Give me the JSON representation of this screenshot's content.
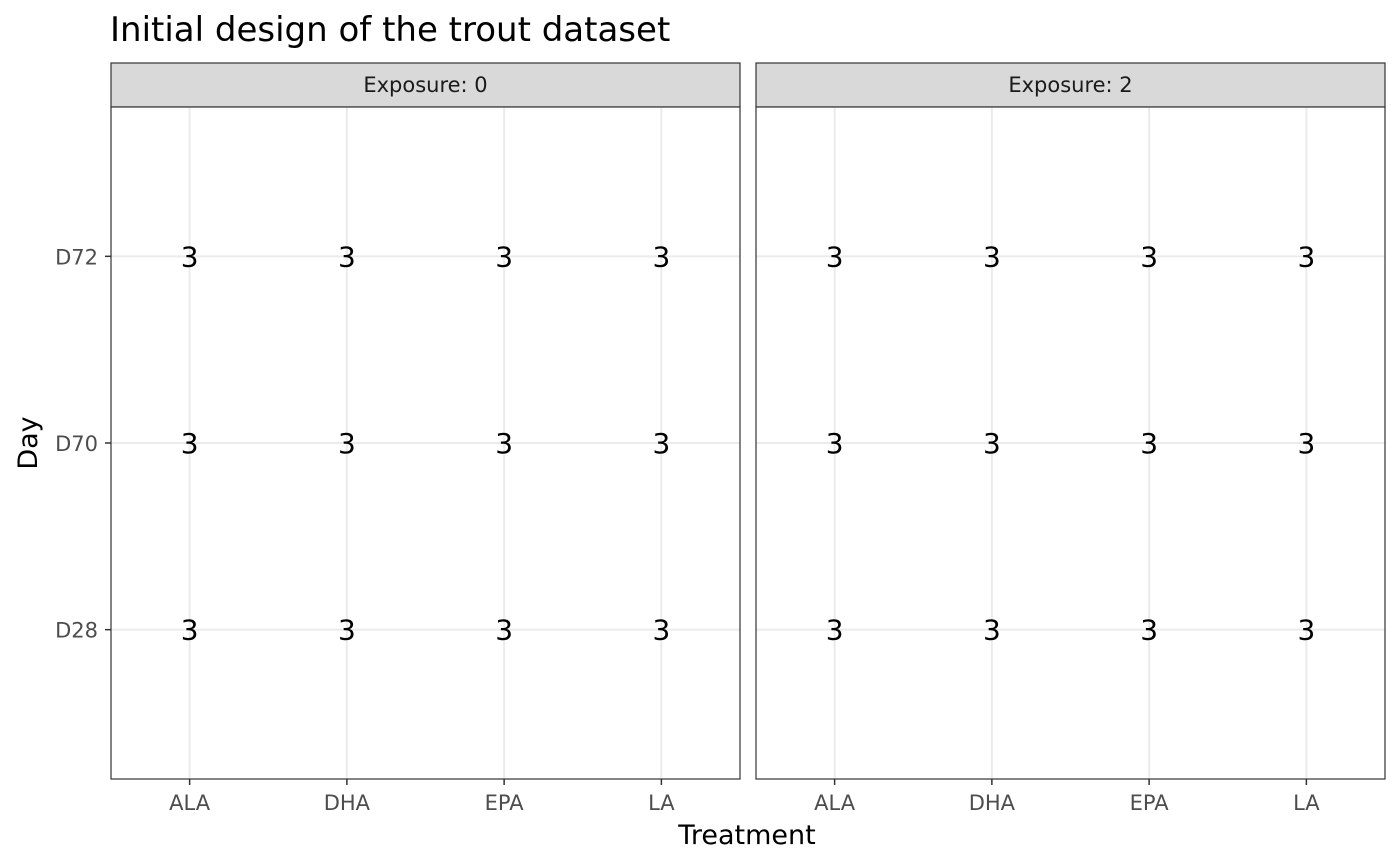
{
  "chart_data": {
    "type": "table",
    "title": "Initial design of the trout dataset",
    "xlabel": "Treatment",
    "ylabel": "Day",
    "facet_prefix": "Exposure: ",
    "facets": [
      {
        "label": "Exposure: 0",
        "exposure": "0",
        "cells": [
          {
            "x": "ALA",
            "y": "D72",
            "count": "3"
          },
          {
            "x": "DHA",
            "y": "D72",
            "count": "3"
          },
          {
            "x": "EPA",
            "y": "D72",
            "count": "3"
          },
          {
            "x": "LA",
            "y": "D72",
            "count": "3"
          },
          {
            "x": "ALA",
            "y": "D70",
            "count": "3"
          },
          {
            "x": "DHA",
            "y": "D70",
            "count": "3"
          },
          {
            "x": "EPA",
            "y": "D70",
            "count": "3"
          },
          {
            "x": "LA",
            "y": "D70",
            "count": "3"
          },
          {
            "x": "ALA",
            "y": "D28",
            "count": "3"
          },
          {
            "x": "DHA",
            "y": "D28",
            "count": "3"
          },
          {
            "x": "EPA",
            "y": "D28",
            "count": "3"
          },
          {
            "x": "LA",
            "y": "D28",
            "count": "3"
          }
        ]
      },
      {
        "label": "Exposure: 2",
        "exposure": "2",
        "cells": [
          {
            "x": "ALA",
            "y": "D72",
            "count": "3"
          },
          {
            "x": "DHA",
            "y": "D72",
            "count": "3"
          },
          {
            "x": "EPA",
            "y": "D72",
            "count": "3"
          },
          {
            "x": "LA",
            "y": "D72",
            "count": "3"
          },
          {
            "x": "ALA",
            "y": "D70",
            "count": "3"
          },
          {
            "x": "DHA",
            "y": "D70",
            "count": "3"
          },
          {
            "x": "EPA",
            "y": "D70",
            "count": "3"
          },
          {
            "x": "LA",
            "y": "D70",
            "count": "3"
          },
          {
            "x": "ALA",
            "y": "D28",
            "count": "3"
          },
          {
            "x": "DHA",
            "y": "D28",
            "count": "3"
          },
          {
            "x": "EPA",
            "y": "D28",
            "count": "3"
          },
          {
            "x": "LA",
            "y": "D28",
            "count": "3"
          }
        ]
      }
    ],
    "x_categories": [
      "ALA",
      "DHA",
      "EPA",
      "LA"
    ],
    "y_categories": [
      "D28",
      "D70",
      "D72"
    ],
    "grid": true,
    "legend": "none",
    "colors": {
      "panel_border": "#333333",
      "strip_fill": "#d9d9d9",
      "grid": "#ebebeb",
      "tick": "#333333",
      "tick_label": "#4d4d4d",
      "text": "#000000"
    }
  }
}
